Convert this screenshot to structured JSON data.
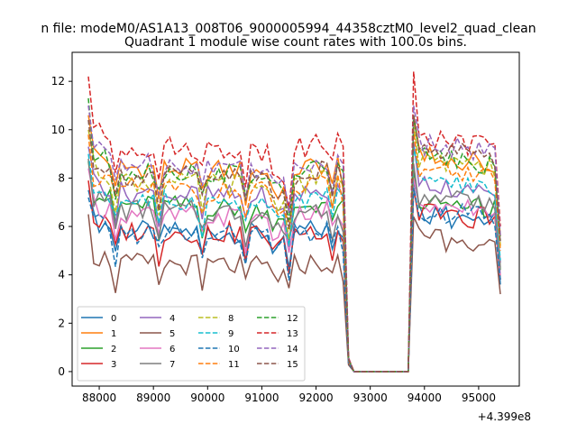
{
  "chart_data": {
    "type": "line",
    "suptitle": "n file: modeM0/AS1A13_008T06_9000005994_44358cztM0_level2_quad_clean",
    "title": "Quadrant 1 module wise count rates with 100.0s bins.",
    "xlabel": "",
    "ylabel": "",
    "x_offset_label": "+4.399e8",
    "xlim": [
      87500,
      95750
    ],
    "ylim": [
      -0.6,
      13.2
    ],
    "x_ticks": [
      88000,
      89000,
      90000,
      91000,
      92000,
      93000,
      94000,
      95000
    ],
    "y_ticks": [
      0,
      2,
      4,
      6,
      8,
      10,
      12
    ],
    "x_start": 87800,
    "x_step": 100,
    "n_points": 77,
    "gap": {
      "start_x": 92700,
      "end_x": 93700,
      "value": 0
    },
    "legend": {
      "position": "lower-left",
      "columns": 4
    },
    "series": [
      {
        "name": "0",
        "style": "solid",
        "color": "#1f77b4",
        "pre": 6.0,
        "post": 6.6,
        "lead": 7.5,
        "post_lead": 7.9,
        "last": 3.6
      },
      {
        "name": "1",
        "style": "solid",
        "color": "#ff7f0e",
        "pre": 8.7,
        "post": 9.1,
        "lead": 10.6,
        "post_lead": 10.6,
        "last": 5.6
      },
      {
        "name": "2",
        "style": "solid",
        "color": "#2ca02c",
        "pre": 7.1,
        "post": 7.2,
        "lead": 8.7,
        "post_lead": 8.4,
        "last": 4.2
      },
      {
        "name": "3",
        "style": "solid",
        "color": "#d62728",
        "pre": 6.0,
        "post": 6.7,
        "lead": 7.9,
        "post_lead": 7.6,
        "last": 3.8
      },
      {
        "name": "4",
        "style": "solid",
        "color": "#9467bd",
        "pre": 7.6,
        "post": 7.9,
        "lead": 9.3,
        "post_lead": 9.5,
        "last": 4.5
      },
      {
        "name": "5",
        "style": "solid",
        "color": "#8c564b",
        "pre": 4.6,
        "post": 5.6,
        "lead": 6.5,
        "post_lead": 6.4,
        "last": 3.2
      },
      {
        "name": "6",
        "style": "solid",
        "color": "#e377c2",
        "pre": 6.7,
        "post": 7.0,
        "lead": 8.4,
        "post_lead": 8.0,
        "last": 4.0
      },
      {
        "name": "7",
        "style": "solid",
        "color": "#7f7f7f",
        "pre": 6.9,
        "post": 7.4,
        "lead": 8.8,
        "post_lead": 8.6,
        "last": 4.3
      },
      {
        "name": "8",
        "style": "dashed",
        "color": "#bcbd22",
        "pre": 8.1,
        "post": 8.9,
        "lead": 10.0,
        "post_lead": 10.3,
        "last": 5.2
      },
      {
        "name": "9",
        "style": "dashed",
        "color": "#17becf",
        "pre": 7.3,
        "post": 8.0,
        "lead": 9.0,
        "post_lead": 9.3,
        "last": 4.6
      },
      {
        "name": "10",
        "style": "dashed",
        "color": "#1f77b4",
        "pre": 5.9,
        "post": 6.8,
        "lead": 7.2,
        "post_lead": 7.6,
        "last": 3.8
      },
      {
        "name": "11",
        "style": "dashed",
        "color": "#ff7f0e",
        "pre": 7.8,
        "post": 8.6,
        "lead": 9.8,
        "post_lead": 10.0,
        "last": 5.0
      },
      {
        "name": "12",
        "style": "dashed",
        "color": "#2ca02c",
        "pre": 8.6,
        "post": 9.1,
        "lead": 11.3,
        "post_lead": 10.6,
        "last": 5.4
      },
      {
        "name": "13",
        "style": "dashed",
        "color": "#d62728",
        "pre": 9.6,
        "post": 9.8,
        "lead": 12.2,
        "post_lead": 12.4,
        "last": 6.0
      },
      {
        "name": "14",
        "style": "dashed",
        "color": "#9467bd",
        "pre": 8.9,
        "post": 9.6,
        "lead": 11.0,
        "post_lead": 11.0,
        "last": 5.6
      },
      {
        "name": "15",
        "style": "dashed",
        "color": "#8c564b",
        "pre": 8.4,
        "post": 9.4,
        "lead": 10.4,
        "post_lead": 10.6,
        "last": 5.3
      }
    ]
  }
}
